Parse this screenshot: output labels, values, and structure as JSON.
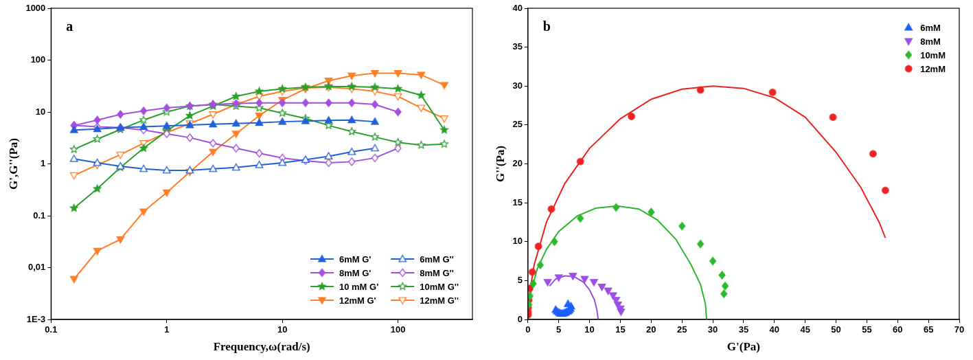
{
  "chart_data": [
    {
      "type": "line",
      "annotation": "a",
      "x_label": "Frequency,ω(rad/s)",
      "y_label": "G',G''(Pa)",
      "log": true,
      "grid": false,
      "legend": "lower right",
      "xlim": [
        0.1,
        440
      ],
      "xticks": [
        0.1,
        1,
        10,
        100
      ],
      "ylim": [
        0.001,
        1000
      ],
      "yticks": [
        {
          "value": 0.001,
          "label": "1E-3"
        },
        {
          "value": 0.01,
          "label": "0,01"
        },
        0.1,
        1,
        10,
        100,
        1000
      ],
      "series": [
        {
          "name": "6mM G'",
          "color": "#2060d8",
          "marker": "triangle",
          "x": [
            0.158,
            0.251,
            0.398,
            0.631,
            1,
            1.585,
            2.512,
            3.981,
            6.31,
            10,
            15.85,
            25.12,
            39.81,
            63.1
          ],
          "values": [
            4.5,
            4.7,
            5,
            5.2,
            5.4,
            5.6,
            5.8,
            6,
            6.2,
            6.5,
            6.7,
            6.9,
            7,
            6.5
          ]
        },
        {
          "name": "6mM G''",
          "color": "#2060d8",
          "marker": "triangle-open",
          "x": [
            0.158,
            0.251,
            0.398,
            0.631,
            1,
            1.585,
            2.512,
            3.981,
            6.31,
            10,
            15.85,
            25.12,
            39.81,
            63.1
          ],
          "values": [
            1.25,
            1.05,
            0.9,
            0.8,
            0.75,
            0.75,
            0.8,
            0.85,
            0.95,
            1.05,
            1.2,
            1.4,
            1.7,
            2.0
          ]
        },
        {
          "name": "8mM G'",
          "color": "#a34fe0",
          "marker": "diamond",
          "x": [
            0.158,
            0.251,
            0.398,
            0.631,
            1,
            1.585,
            2.512,
            3.981,
            6.31,
            10,
            15.85,
            25.12,
            39.81,
            63.1,
            100
          ],
          "values": [
            5.5,
            7,
            9,
            10.5,
            12,
            13,
            14,
            14.5,
            15,
            15,
            15,
            15,
            15,
            14,
            10
          ]
        },
        {
          "name": "8mM G''",
          "color": "#a34fe0",
          "marker": "diamond-open",
          "x": [
            0.158,
            0.251,
            0.398,
            0.631,
            1,
            1.585,
            2.512,
            3.981,
            6.31,
            10,
            15.85,
            25.12,
            39.81,
            63.1,
            100
          ],
          "values": [
            5.5,
            5.2,
            5,
            4.5,
            3.8,
            3.2,
            2.5,
            2,
            1.6,
            1.3,
            1.15,
            1.05,
            1.1,
            1.3,
            2.0
          ]
        },
        {
          "name": "10 mM G'",
          "color": "#2ca02c",
          "marker": "star",
          "x": [
            0.158,
            0.251,
            0.398,
            0.631,
            1,
            1.585,
            2.512,
            3.981,
            6.31,
            10,
            15.85,
            25.12,
            39.81,
            63.1,
            100,
            158.5,
            251.2
          ],
          "values": [
            0.14,
            0.33,
            0.85,
            2,
            4.3,
            8.5,
            13,
            20,
            25,
            28,
            30,
            31,
            31,
            30,
            28,
            21,
            4.5
          ]
        },
        {
          "name": "10mM G''",
          "color": "#2ca02c",
          "marker": "star-open",
          "x": [
            0.158,
            0.251,
            0.398,
            0.631,
            1,
            1.585,
            2.512,
            3.981,
            6.31,
            10,
            15.85,
            25.12,
            39.81,
            63.1,
            100,
            158.5,
            251.2
          ],
          "values": [
            1.9,
            3,
            4.6,
            7,
            10,
            13,
            14,
            13,
            12,
            9.5,
            7.5,
            5.5,
            4.2,
            3.3,
            2.6,
            2.3,
            2.4
          ]
        },
        {
          "name": "12mM G'",
          "color": "#ff7f27",
          "marker": "triangle-down",
          "x": [
            0.158,
            0.251,
            0.398,
            0.631,
            1,
            1.585,
            2.512,
            3.981,
            6.31,
            10,
            15.85,
            25.12,
            39.81,
            63.1,
            100,
            158.5,
            251.2
          ],
          "values": [
            0.006,
            0.021,
            0.035,
            0.12,
            0.28,
            0.7,
            1.7,
            3.8,
            8.5,
            17,
            28,
            40,
            50,
            56,
            56,
            52,
            33
          ]
        },
        {
          "name": "12mM G''",
          "color": "#ff7f27",
          "marker": "triangle-down-open",
          "x": [
            0.158,
            0.251,
            0.398,
            0.631,
            1,
            1.585,
            2.512,
            3.981,
            6.31,
            10,
            15.85,
            25.12,
            39.81,
            63.1,
            100,
            158.5,
            251.2
          ],
          "values": [
            0.6,
            0.95,
            1.5,
            2.5,
            4,
            6,
            9,
            14,
            20,
            25,
            29,
            30,
            28,
            25,
            20,
            12,
            7.5
          ]
        }
      ]
    },
    {
      "type": "scatter",
      "annotation": "b",
      "x_label": "G'(Pa)",
      "y_label": "G''(Pa)",
      "grid": false,
      "legend": "upper right",
      "xlim": [
        0,
        70
      ],
      "xticks": [
        0,
        5,
        10,
        15,
        20,
        25,
        30,
        35,
        40,
        45,
        50,
        55,
        60,
        65,
        70
      ],
      "ylim": [
        0,
        40
      ],
      "yticks": [
        0,
        5,
        10,
        15,
        20,
        25,
        30,
        35,
        40
      ],
      "series": [
        {
          "name": "6mM",
          "color": "#1f5fff",
          "marker": "triangle",
          "x": [
            4.5,
            4.7,
            5,
            5.2,
            5.4,
            5.6,
            5.8,
            6,
            6.2,
            6.5,
            6.7,
            6.9,
            7,
            6.5
          ],
          "values": [
            1.25,
            1.05,
            0.9,
            0.8,
            0.75,
            0.75,
            0.8,
            0.85,
            0.95,
            1.05,
            1.2,
            1.4,
            1.7,
            2.0
          ]
        },
        {
          "name": "8mM",
          "color": "#9c4fe8",
          "marker": "triangle-down",
          "x": [
            3.2,
            5,
            7.3,
            9.2,
            10.7,
            12,
            13,
            13.8,
            14.3,
            14.6,
            15,
            15.1
          ],
          "values": [
            4.8,
            5.4,
            5.6,
            5.2,
            4.8,
            4.2,
            3.7,
            3.1,
            2.5,
            1.9,
            1.4,
            1.0
          ]
        },
        {
          "name": "10mM",
          "color": "#2db82d",
          "marker": "diamond",
          "x": [
            0.14,
            0.33,
            0.85,
            2,
            4.3,
            8.5,
            14.3,
            20,
            25,
            28,
            30,
            31.5,
            32,
            31.8
          ],
          "values": [
            1.9,
            3,
            4.6,
            7,
            10,
            13,
            14.4,
            13.8,
            12,
            9.7,
            7.5,
            5.7,
            4.3,
            3.3
          ]
        },
        {
          "name": "12mM",
          "color": "#ee2222",
          "marker": "circle",
          "x": [
            0.006,
            0.021,
            0.035,
            0.12,
            0.28,
            0.7,
            1.7,
            3.8,
            8.5,
            16.8,
            28,
            39.7,
            49.5,
            56,
            58
          ],
          "values": [
            0.6,
            0.95,
            1.5,
            2.5,
            4,
            6.1,
            9.4,
            14.2,
            20.3,
            26.1,
            29.5,
            29.2,
            26,
            21.3,
            16.6
          ]
        },
        {
          "type": "line",
          "color": "#9c4fe8",
          "marker": "none",
          "x": [
            3.5,
            4.5,
            6,
            7.5,
            9,
            10,
            10.8,
            11.2,
            11.4
          ],
          "values": [
            4.3,
            5.2,
            5.6,
            5.5,
            4.8,
            3.8,
            2.5,
            1.2,
            0
          ]
        },
        {
          "type": "line",
          "color": "#2db82d",
          "marker": "none",
          "x": [
            0,
            0.5,
            1.5,
            3,
            5,
            8,
            11,
            14.5,
            18,
            21,
            24,
            26.5,
            28,
            28.8,
            29
          ],
          "values": [
            0,
            3.5,
            6.5,
            9,
            11.3,
            13.3,
            14.3,
            14.6,
            14.2,
            12.8,
            10.3,
            7,
            4.5,
            2,
            0
          ]
        },
        {
          "type": "line",
          "color": "#ee2222",
          "marker": "none",
          "x": [
            0,
            0.2,
            1,
            3,
            6,
            10,
            15,
            20,
            25,
            30,
            35,
            40,
            45,
            50,
            54,
            57,
            58
          ],
          "values": [
            0,
            3,
            7,
            12.5,
            17.5,
            22,
            25.8,
            28.3,
            29.6,
            30,
            29.7,
            28.5,
            26,
            21.5,
            17,
            12.5,
            10.5
          ]
        }
      ]
    }
  ]
}
